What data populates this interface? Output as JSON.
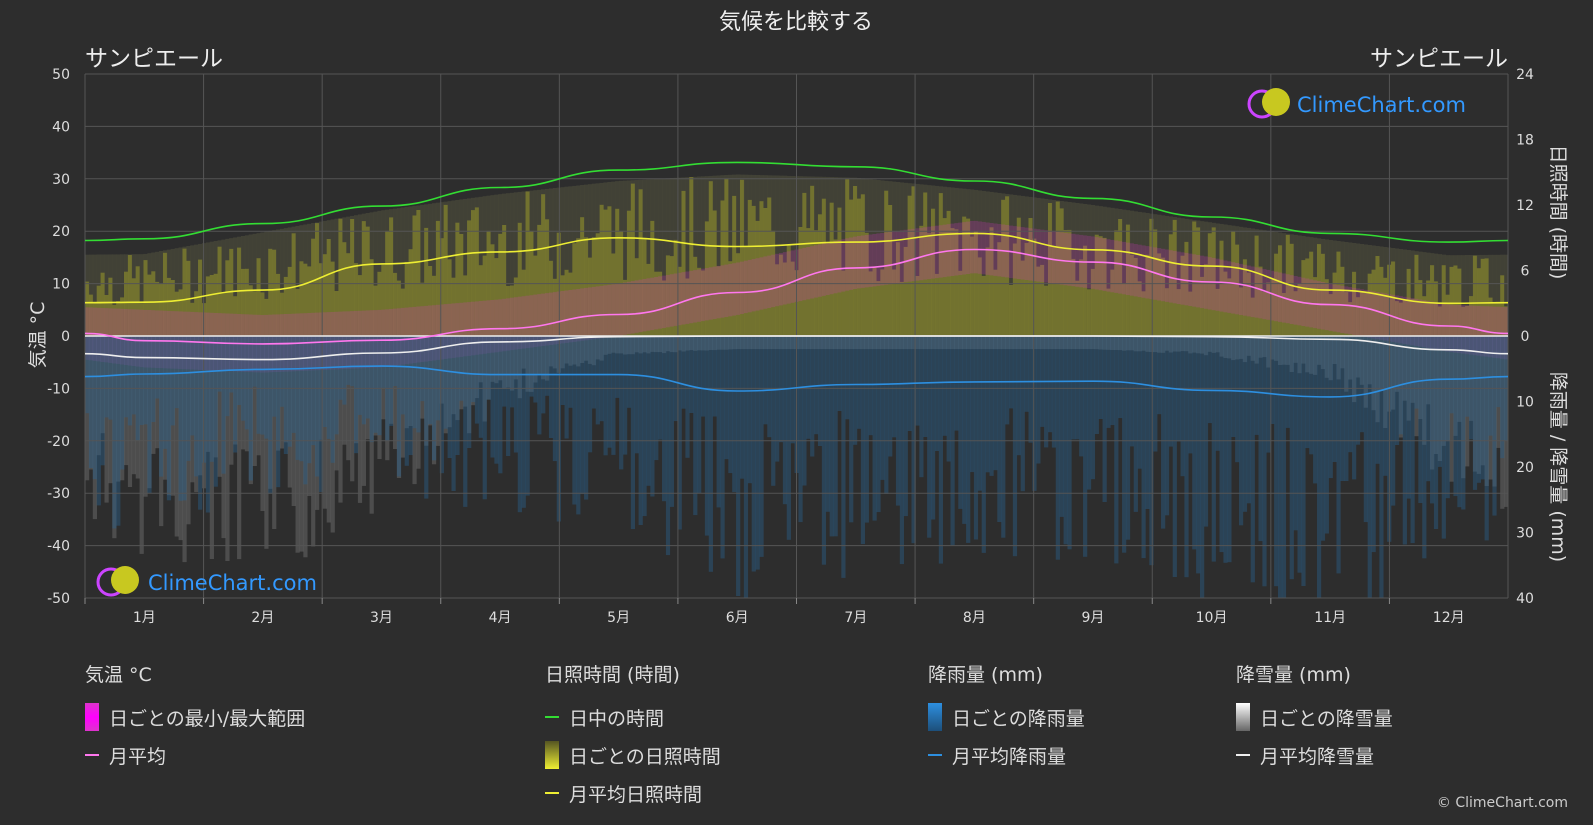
{
  "title": "気候を比較する",
  "location_left": "サンピエール",
  "location_right": "サンピエール",
  "logo_text": "ClimeChart.com",
  "copyright": "© ClimeChart.com",
  "colors": {
    "background": "#2d2d2d",
    "grid": "#555555",
    "daylight": "#33dd33",
    "sunshine_avg": "#eeee33",
    "sunshine_fill": "#9a9a2a",
    "temp_avg": "#ff77ee",
    "temp_range": "#dd33cc",
    "rain_avg": "#2d8fe0",
    "rain_fill": "#2a5f8a",
    "snow_avg": "#eeeeee",
    "snow_fill": "#8a8a8a",
    "logo_blue": "#3399ff"
  },
  "chart_data": {
    "type": "line",
    "months": [
      "1月",
      "2月",
      "3月",
      "4月",
      "5月",
      "6月",
      "7月",
      "8月",
      "9月",
      "10月",
      "11月",
      "12月"
    ],
    "axes": {
      "left": {
        "label": "気温 °C",
        "min": -50,
        "max": 50,
        "ticks": [
          50,
          40,
          30,
          20,
          10,
          0,
          -10,
          -20,
          -30,
          -40,
          -50
        ]
      },
      "right_top": {
        "label": "日照時間 (時間)",
        "min": 0,
        "max": 24,
        "ticks": [
          24,
          18,
          12,
          6,
          0
        ]
      },
      "right_bottom": {
        "label": "降雨量 / 降雪量 (mm)",
        "min": 0,
        "max": 40,
        "ticks": [
          0,
          10,
          20,
          30,
          40
        ]
      }
    },
    "series": [
      {
        "name": "日中の時間",
        "unit": "hours",
        "values": [
          8.9,
          10.3,
          11.9,
          13.6,
          15.2,
          15.9,
          15.5,
          14.2,
          12.6,
          10.9,
          9.4,
          8.6
        ]
      },
      {
        "name": "月平均日照時間",
        "unit": "hours",
        "values": [
          3.1,
          4.2,
          6.6,
          7.7,
          9.0,
          8.2,
          8.6,
          9.4,
          7.9,
          6.4,
          4.2,
          3.0
        ]
      },
      {
        "name": "月平均",
        "unit": "°C",
        "values": [
          -0.9,
          -1.5,
          -0.8,
          1.4,
          4.1,
          8.3,
          13.0,
          16.5,
          14.1,
          10.3,
          6.0,
          1.9
        ]
      },
      {
        "name": "月平均降雨量",
        "unit": "mm",
        "values": [
          5.8,
          5.1,
          4.6,
          5.9,
          5.9,
          8.4,
          7.4,
          7.0,
          6.9,
          8.3,
          9.3,
          6.6
        ]
      },
      {
        "name": "月平均降雪量",
        "unit": "mm",
        "values": [
          3.3,
          3.6,
          2.6,
          0.9,
          0.1,
          0.0,
          0.0,
          0.0,
          0.0,
          0.1,
          0.5,
          2.1
        ]
      }
    ],
    "daily_sunshine_max_hours": [
      7.5,
      9.5,
      11.5,
      13.0,
      14.2,
      14.8,
      14.5,
      13.4,
      12.0,
      10.4,
      8.8,
      7.4
    ],
    "daily_temp_range_c": [
      [
        -6,
        5
      ],
      [
        -7,
        4
      ],
      [
        -6,
        5
      ],
      [
        -3,
        7
      ],
      [
        0,
        10
      ],
      [
        4,
        14
      ],
      [
        9,
        19
      ],
      [
        12,
        22
      ],
      [
        9,
        19
      ],
      [
        5,
        15
      ],
      [
        1,
        10
      ],
      [
        -3,
        6
      ]
    ]
  },
  "legend": {
    "temp": {
      "header": "気温 °C",
      "range": "日ごとの最小/最大範囲",
      "avg": "月平均"
    },
    "sun": {
      "header": "日照時間 (時間)",
      "daylight": "日中の時間",
      "daily": "日ごとの日照時間",
      "avg": "月平均日照時間"
    },
    "rain": {
      "header": "降雨量 (mm)",
      "daily": "日ごとの降雨量",
      "avg": "月平均降雨量"
    },
    "snow": {
      "header": "降雪量 (mm)",
      "daily": "日ごとの降雪量",
      "avg": "月平均降雪量"
    }
  }
}
